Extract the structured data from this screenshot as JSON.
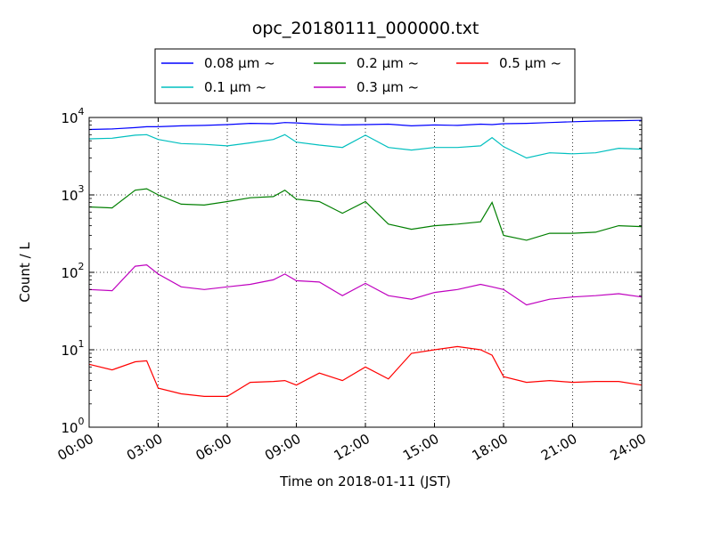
{
  "chart_data": {
    "type": "line",
    "title": "opc_20180111_000000.txt",
    "xlabel": "Time on 2018-01-11 (JST)",
    "ylabel": "Count / L",
    "xlim": [
      "00:00",
      "24:00"
    ],
    "ylim": [
      1,
      10000
    ],
    "yscale": "log",
    "grid": true,
    "legend_position": "top-center",
    "legend_columns": 3,
    "x_ticks": [
      "00:00",
      "03:00",
      "06:00",
      "09:00",
      "12:00",
      "15:00",
      "18:00",
      "21:00",
      "24:00"
    ],
    "y_ticks": [
      {
        "value": 1,
        "base": "10",
        "exp": "0"
      },
      {
        "value": 10,
        "base": "10",
        "exp": "1"
      },
      {
        "value": 100,
        "base": "10",
        "exp": "2"
      },
      {
        "value": 1000,
        "base": "10",
        "exp": "3"
      },
      {
        "value": 10000,
        "base": "10",
        "exp": "4"
      }
    ],
    "x_hours": [
      0,
      1,
      2,
      2.5,
      3,
      4,
      5,
      6,
      7,
      8,
      8.5,
      9,
      10,
      11,
      12,
      13,
      14,
      15,
      16,
      17,
      17.5,
      18,
      19,
      20,
      21,
      22,
      23,
      24
    ],
    "series": [
      {
        "name": "0.08 μm ~",
        "color": "#0000ff",
        "values": [
          7000,
          7100,
          7400,
          7600,
          7600,
          7800,
          7900,
          8100,
          8400,
          8300,
          8600,
          8500,
          8200,
          8000,
          8100,
          8200,
          7800,
          8000,
          7900,
          8200,
          8100,
          8300,
          8400,
          8600,
          8800,
          9000,
          9100,
          9200
        ]
      },
      {
        "name": "0.1 μm ~",
        "color": "#00bfbf",
        "values": [
          5300,
          5400,
          5900,
          6000,
          5200,
          4600,
          4500,
          4300,
          4700,
          5200,
          6000,
          4800,
          4400,
          4100,
          5900,
          4100,
          3800,
          4100,
          4100,
          4300,
          5500,
          4200,
          3000,
          3500,
          3400,
          3500,
          4000,
          3900
        ]
      },
      {
        "name": "0.2 μm ~",
        "color": "#007f00",
        "values": [
          700,
          680,
          1150,
          1200,
          1000,
          760,
          740,
          820,
          920,
          950,
          1150,
          880,
          820,
          580,
          820,
          420,
          360,
          400,
          420,
          450,
          800,
          300,
          260,
          320,
          320,
          330,
          400,
          390
        ]
      },
      {
        "name": "0.3 μm ~",
        "color": "#bf00bf",
        "values": [
          60,
          58,
          120,
          125,
          95,
          65,
          60,
          65,
          70,
          80,
          95,
          78,
          75,
          50,
          72,
          50,
          45,
          55,
          60,
          70,
          65,
          60,
          38,
          45,
          48,
          50,
          53,
          48
        ]
      },
      {
        "name": "0.5 μm ~",
        "color": "#ff0000",
        "values": [
          6.5,
          5.5,
          7.0,
          7.2,
          3.2,
          2.7,
          2.5,
          2.5,
          3.8,
          3.9,
          4.0,
          3.5,
          5.0,
          4.0,
          6.0,
          4.2,
          9.0,
          10.0,
          11.0,
          10.0,
          8.5,
          4.5,
          3.8,
          4.0,
          3.8,
          3.9,
          3.9,
          3.5
        ]
      }
    ]
  }
}
